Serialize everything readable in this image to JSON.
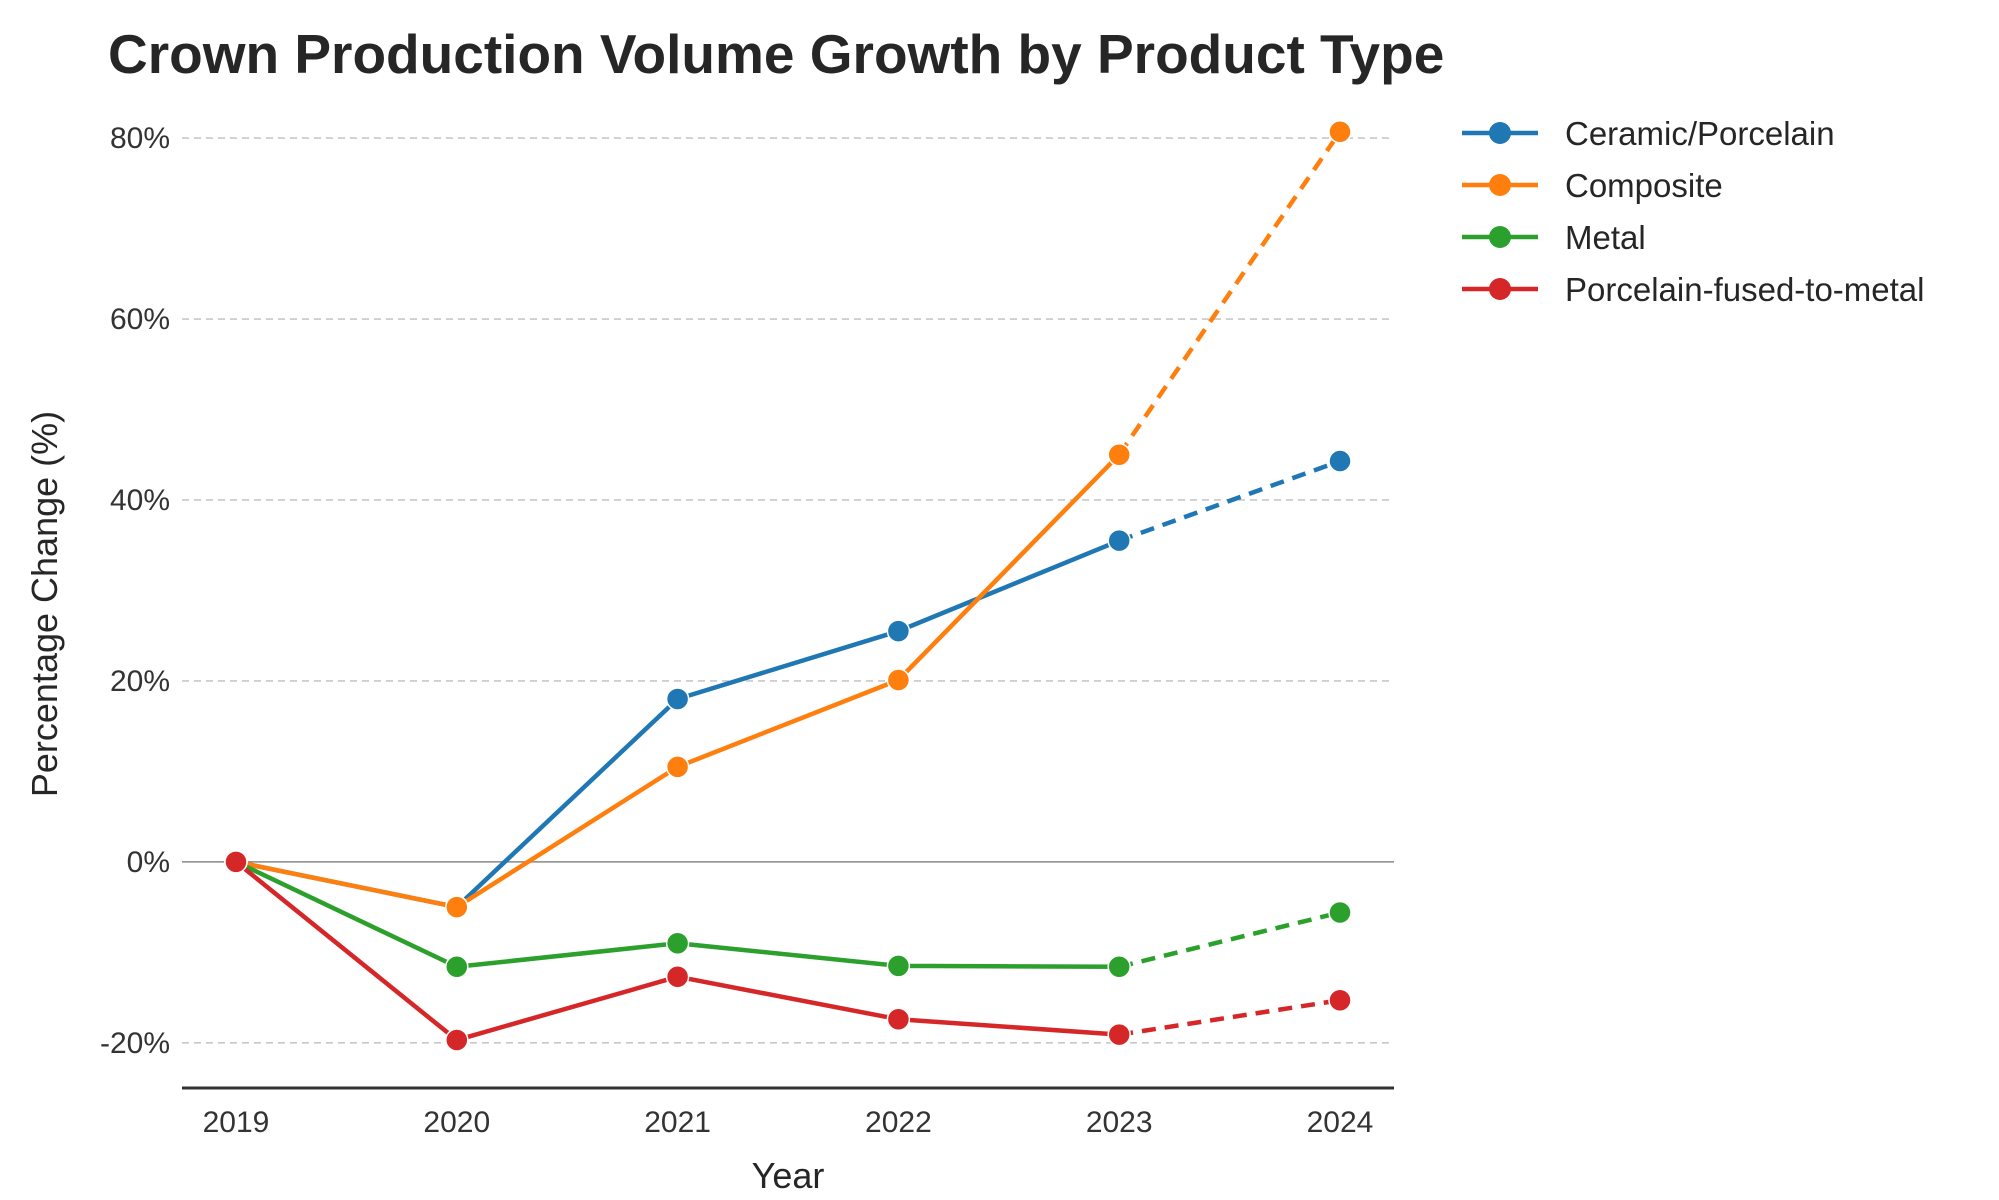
{
  "chart_data": {
    "type": "line",
    "title": "Crown Production Volume Growth by Product Type",
    "xlabel": "Year",
    "ylabel": "Percentage Change (%)",
    "categories": [
      "2019",
      "2020",
      "2021",
      "2022",
      "2023",
      "2024"
    ],
    "projected_from_index": 4,
    "ylim": [
      -25,
      82
    ],
    "yticks": [
      -20,
      0,
      20,
      40,
      60,
      80
    ],
    "ytick_labels": [
      "-20%",
      "0%",
      "20%",
      "40%",
      "60%",
      "80%"
    ],
    "grid": "horizontal dashed",
    "legend_position": "outside top-right",
    "series": [
      {
        "name": "Ceramic/Porcelain",
        "color": "#1f77b4",
        "values": [
          0,
          -5,
          18,
          25.5,
          35.5,
          44.3
        ]
      },
      {
        "name": "Composite",
        "color": "#ff7f0e",
        "values": [
          0,
          -5,
          10.5,
          20.1,
          45,
          80.7
        ]
      },
      {
        "name": "Metal",
        "color": "#2ca02c",
        "values": [
          0,
          -11.6,
          -9,
          -11.5,
          -11.6,
          -5.6
        ]
      },
      {
        "name": "Porcelain-fused-to-metal",
        "color": "#d62728",
        "values": [
          0,
          -19.7,
          -12.7,
          -17.4,
          -19.1,
          -15.3
        ]
      }
    ]
  }
}
